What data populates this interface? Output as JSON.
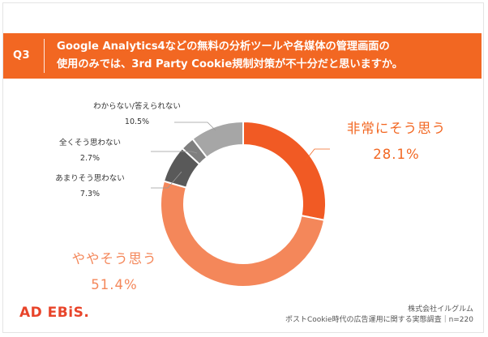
{
  "question": {
    "label": "Q3",
    "text_line1": "Google Analytics4などの無料の分析ツールや各媒体の管理画面の",
    "text_line2": "使用のみでは、3rd Party Cookie規制対策が不十分だと思いますか。"
  },
  "chart_data": {
    "type": "pie",
    "subtype": "donut",
    "title": "Google Analytics4などの無料の分析ツールや各媒体の管理画面の使用のみでは、3rd Party Cookie規制対策が不十分だと思いますか。",
    "unit": "%",
    "slices": [
      {
        "name": "非常にそう思う",
        "value": 28.1,
        "value_label": "28.1%",
        "color": "#f15a24"
      },
      {
        "name": "ややそう思う",
        "value": 51.4,
        "value_label": "51.4%",
        "color": "#f4875a"
      },
      {
        "name": "あまりそう思わない",
        "value": 7.3,
        "value_label": "7.3%",
        "color": "#595959"
      },
      {
        "name": "全くそう思わない",
        "value": 2.7,
        "value_label": "2.7%",
        "color": "#7f7f7f"
      },
      {
        "name": "わからない/答えられない",
        "value": 10.5,
        "value_label": "10.5%",
        "color": "#a6a6a6"
      }
    ]
  },
  "footer": {
    "logo": "AD EBiS.",
    "company": "株式会社イルグルム",
    "survey": "ポストCookie時代の広告運用に関する実態調査｜n=220"
  }
}
